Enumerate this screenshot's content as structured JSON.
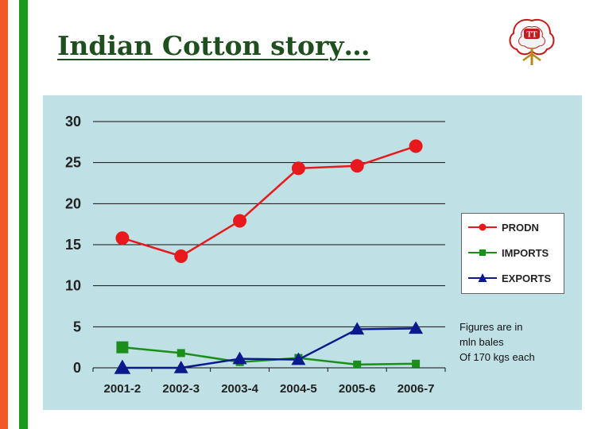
{
  "page": {
    "title": "Indian Cotton story…",
    "logo_text": "TT"
  },
  "chart_data": {
    "type": "line",
    "categories": [
      "2001-2",
      "2002-3",
      "2003-4",
      "2004-5",
      "2005-6",
      "2006-7"
    ],
    "series": [
      {
        "name": "PRODN",
        "values": [
          15.8,
          13.6,
          17.9,
          24.3,
          24.6,
          27.0
        ],
        "color": "#e8191c",
        "marker": "circle"
      },
      {
        "name": "IMPORTS",
        "values": [
          2.5,
          1.8,
          0.7,
          1.2,
          0.4,
          0.5
        ],
        "color": "#1a8f1a",
        "marker": "square"
      },
      {
        "name": "EXPORTS",
        "values": [
          0.0,
          0.0,
          1.1,
          1.0,
          4.7,
          4.8
        ],
        "color": "#0a1a8c",
        "marker": "triangle"
      }
    ],
    "yticks": [
      "0",
      "5",
      "10",
      "15",
      "20",
      "25",
      "30"
    ],
    "ylim": [
      0,
      30
    ],
    "grid": true,
    "legend_placement": "right"
  },
  "note": {
    "lines": [
      "Figures are in",
      "mln bales",
      "Of 170 kgs each"
    ]
  }
}
